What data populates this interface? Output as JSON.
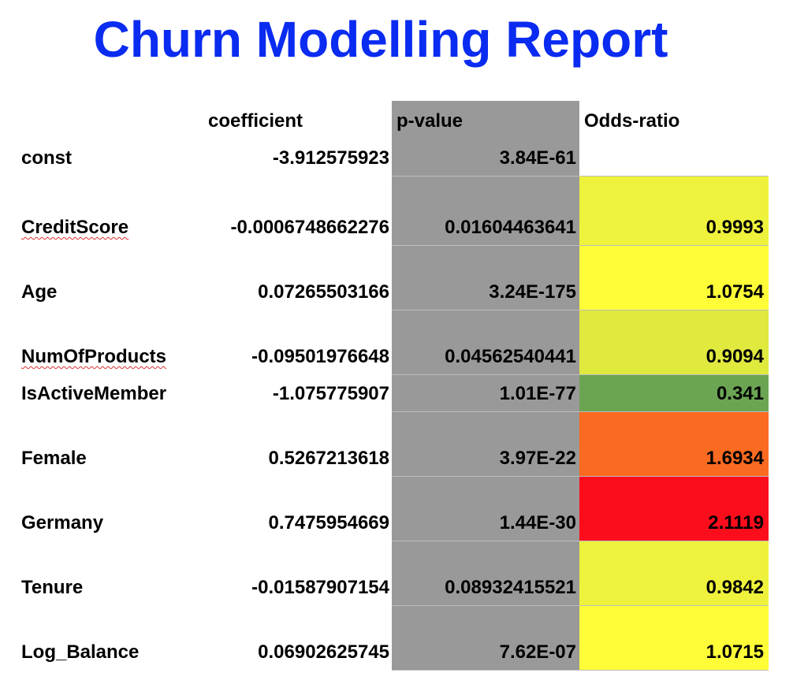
{
  "title": "Churn Modelling Report",
  "table": {
    "headers": {
      "label": "",
      "coefficient": "coefficient",
      "p_value": "p-value",
      "odds_ratio": "Odds-ratio"
    },
    "rows": [
      {
        "label": "const",
        "coefficient": "-3.912575923",
        "p_value": "3.84E-61",
        "odds_ratio": "",
        "odds_color": "",
        "height": 44,
        "spell": false
      },
      {
        "label": "CreditScore",
        "coefficient": "-0.0006748662276",
        "p_value": "0.01604463641",
        "odds_ratio": "0.9993",
        "odds_color": "#eff23c",
        "height": 88,
        "spell": true
      },
      {
        "label": "Age",
        "coefficient": "0.07265503166",
        "p_value": "3.24E-175",
        "odds_ratio": "1.0754",
        "odds_color": "#fffd38",
        "height": 82,
        "spell": false
      },
      {
        "label": "NumOfProducts",
        "coefficient": "-0.09501976648",
        "p_value": "0.04562540441",
        "odds_ratio": "0.9094",
        "odds_color": "#e0e93e",
        "height": 82,
        "spell": true
      },
      {
        "label": "IsActiveMember",
        "coefficient": "-1.075775907",
        "p_value": "1.01E-77",
        "odds_ratio": "0.341",
        "odds_color": "#6ba553",
        "height": 47,
        "spell": false
      },
      {
        "label": "Female",
        "coefficient": "0.5267213618",
        "p_value": "3.97E-22",
        "odds_ratio": "1.6934",
        "odds_color": "#fb6a21",
        "height": 82,
        "spell": false
      },
      {
        "label": "Germany",
        "coefficient": "0.7475954669",
        "p_value": "1.44E-30",
        "odds_ratio": "2.1119",
        "odds_color": "#fb0d1c",
        "height": 82,
        "spell": false
      },
      {
        "label": "Tenure",
        "coefficient": "-0.01587907154",
        "p_value": "0.08932415521",
        "odds_ratio": "0.9842",
        "odds_color": "#eff23c",
        "height": 82,
        "spell": false
      },
      {
        "label": "Log_Balance",
        "coefficient": "0.06902625745",
        "p_value": "7.62E-07",
        "odds_ratio": "1.0715",
        "odds_color": "#fffd38",
        "height": 82,
        "spell": false
      }
    ]
  },
  "colors": {
    "title": "#0a2bf0",
    "p_value_column": "#999999"
  }
}
